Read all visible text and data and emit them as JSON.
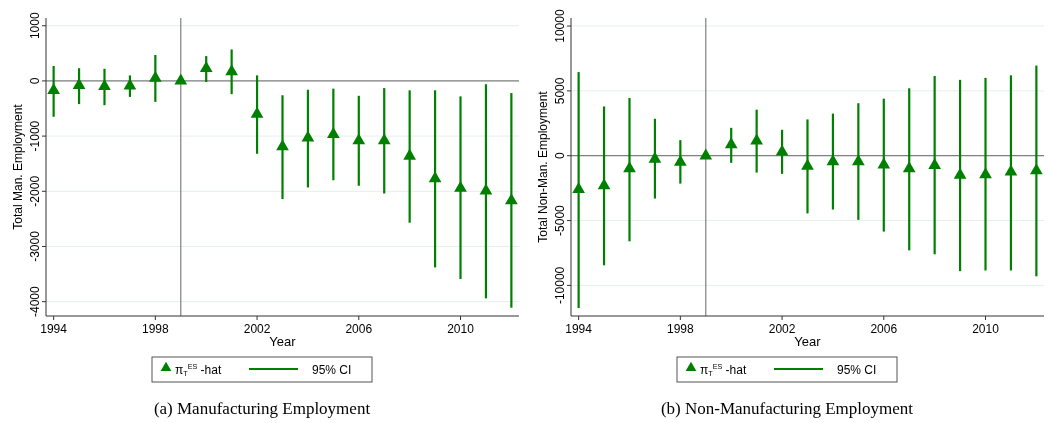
{
  "chart_data": [
    {
      "type": "scatter",
      "title": "(a) Manufacturing Employment",
      "xlabel": "Year",
      "ylabel": "Total Man. Employment",
      "x": [
        1994,
        1995,
        1996,
        1997,
        1998,
        1999,
        2000,
        2001,
        2002,
        2003,
        2004,
        2005,
        2006,
        2007,
        2008,
        2009,
        2010,
        2011,
        2012
      ],
      "series": [
        {
          "name": "π$_{T}$$^{ES}$ -hat",
          "color": "#008000",
          "values": [
            -170,
            -80,
            -100,
            -90,
            50,
            0,
            230,
            170,
            -600,
            -1190,
            -1030,
            -970,
            -1080,
            -1080,
            -1360,
            -1770,
            -1940,
            -1990,
            -2170
          ],
          "errors": [
            [
              -650,
              270
            ],
            [
              -420,
              230
            ],
            [
              -440,
              220
            ],
            [
              -290,
              100
            ],
            [
              -380,
              470
            ],
            null,
            [
              -20,
              450
            ],
            [
              -240,
              570
            ],
            [
              -1320,
              100
            ],
            [
              -2140,
              -260
            ],
            [
              -1930,
              -160
            ],
            [
              -1800,
              -140
            ],
            [
              -1900,
              -270
            ],
            [
              -2040,
              -130
            ],
            [
              -2570,
              -170
            ],
            [
              -3380,
              -170
            ],
            [
              -3590,
              -280
            ],
            [
              -3940,
              -60
            ],
            [
              -4110,
              -220
            ]
          ]
        }
      ],
      "annotations": [
        "95% CI"
      ],
      "xlim": [
        1993.7,
        2012.3
      ],
      "xticks": [
        1994,
        1998,
        2002,
        2006,
        2010
      ],
      "ylim": [
        -4260,
        1140
      ],
      "yticks": [
        -4000,
        -3000,
        -2000,
        -1000,
        0,
        1000
      ],
      "ref_lines": [
        {
          "axis": "x",
          "value": 1999,
          "color": "#808080"
        },
        {
          "axis": "y",
          "value": 0,
          "color": "#808080"
        }
      ],
      "grid": "y",
      "legend": "bottom",
      "marker": "triangle"
    },
    {
      "type": "scatter",
      "title": "(b) Non-Manufacturing Employment",
      "xlabel": "Year",
      "ylabel": "Total Non-Man. Employment",
      "x": [
        1994,
        1995,
        1996,
        1997,
        1998,
        1999,
        2000,
        2001,
        2002,
        2003,
        2004,
        2005,
        2006,
        2007,
        2008,
        2009,
        2010,
        2011,
        2012
      ],
      "series": [
        {
          "name": "π$_{T}$$^{ES}$ -hat",
          "color": "#008000",
          "values": [
            -2600,
            -2300,
            -1000,
            -250,
            -500,
            0,
            850,
            1150,
            300,
            -800,
            -450,
            -450,
            -700,
            -1000,
            -750,
            -1500,
            -1450,
            -1250,
            -1150
          ],
          "errors": [
            [
              -11750,
              6450
            ],
            [
              -8450,
              3800
            ],
            [
              -6600,
              4450
            ],
            [
              -3300,
              2850
            ],
            [
              -2150,
              1200
            ],
            null,
            [
              -550,
              2150
            ],
            [
              -1300,
              3550
            ],
            [
              -1400,
              2000
            ],
            [
              -4450,
              2800
            ],
            [
              -4150,
              3250
            ],
            [
              -4950,
              4050
            ],
            [
              -5850,
              4400
            ],
            [
              -7300,
              5200
            ],
            [
              -7600,
              6150
            ],
            [
              -8900,
              5850
            ],
            [
              -8850,
              6000
            ],
            [
              -8850,
              6200
            ],
            [
              -9300,
              6950
            ]
          ]
        }
      ],
      "annotations": [
        "95% CI"
      ],
      "xlim": [
        1993.7,
        2012.3
      ],
      "xticks": [
        1994,
        1998,
        2002,
        2006,
        2010
      ],
      "ylim": [
        -12360,
        10620
      ],
      "yticks": [
        -10000,
        -5000,
        0,
        5000,
        10000
      ],
      "ref_lines": [
        {
          "axis": "x",
          "value": 1999,
          "color": "#808080"
        },
        {
          "axis": "y",
          "value": 0,
          "color": "#808080"
        }
      ],
      "grid": "y",
      "legend": "bottom",
      "marker": "triangle"
    }
  ]
}
